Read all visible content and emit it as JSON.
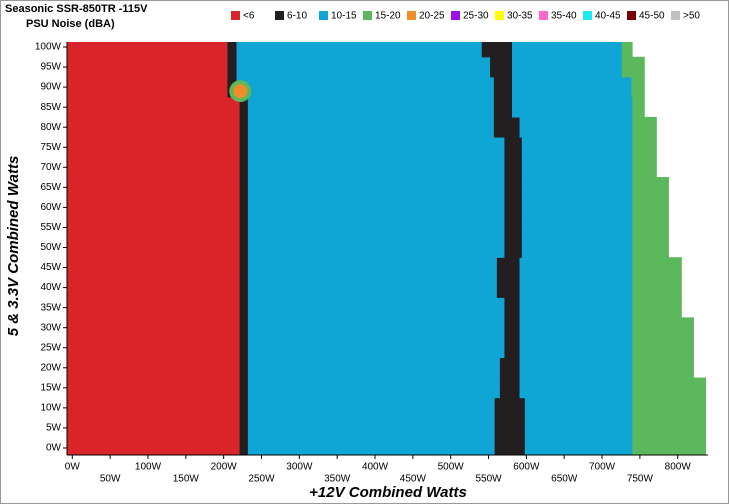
{
  "chart_data": {
    "type": "region-map",
    "title": "Seasonic SSR-850TR -115V",
    "subtitle": "PSU Noise (dBA)",
    "x_label": "+12V Combined Watts",
    "y_label": "5 & 3.3V Combined Watts",
    "legend": [
      {
        "name": "<6",
        "color": "#d9252a"
      },
      {
        "name": "6-10",
        "color": "#231f20"
      },
      {
        "name": "10-15",
        "color": "#0fa5d4"
      },
      {
        "name": "15-20",
        "color": "#5cb85c"
      },
      {
        "name": "20-25",
        "color": "#f08c2a"
      },
      {
        "name": "25-30",
        "color": "#9b10e6"
      },
      {
        "name": "30-35",
        "color": "#ffff00"
      },
      {
        "name": "35-40",
        "color": "#ff69c8"
      },
      {
        "name": "40-45",
        "color": "#1ee8f0"
      },
      {
        "name": "45-50",
        "color": "#7a0000"
      },
      {
        "name": ">50",
        "color": "#c0c0c0"
      }
    ],
    "layers": [
      0,
      1,
      2,
      1,
      2,
      3
    ],
    "rows": [
      {
        "y": 0,
        "ends": [
          221,
          232,
          558,
          598,
          740,
          837
        ]
      },
      {
        "y": 5,
        "ends": [
          221,
          232,
          558,
          598,
          740,
          837
        ]
      },
      {
        "y": 10,
        "ends": [
          221,
          232,
          558,
          598,
          740,
          837
        ]
      },
      {
        "y": 15,
        "ends": [
          221,
          232,
          565,
          591,
          740,
          837
        ]
      },
      {
        "y": 20,
        "ends": [
          221,
          232,
          565,
          591,
          740,
          821
        ]
      },
      {
        "y": 25,
        "ends": [
          221,
          232,
          571,
          591,
          740,
          821
        ]
      },
      {
        "y": 30,
        "ends": [
          221,
          232,
          571,
          591,
          740,
          821
        ]
      },
      {
        "y": 35,
        "ends": [
          221,
          232,
          571,
          591,
          740,
          805
        ]
      },
      {
        "y": 40,
        "ends": [
          221,
          232,
          561,
          591,
          740,
          805
        ]
      },
      {
        "y": 45,
        "ends": [
          221,
          232,
          561,
          591,
          740,
          805
        ]
      },
      {
        "y": 50,
        "ends": [
          221,
          232,
          571,
          594,
          740,
          788
        ]
      },
      {
        "y": 55,
        "ends": [
          221,
          232,
          571,
          594,
          740,
          788
        ]
      },
      {
        "y": 60,
        "ends": [
          221,
          232,
          571,
          594,
          740,
          788
        ]
      },
      {
        "y": 65,
        "ends": [
          221,
          232,
          571,
          594,
          740,
          788
        ]
      },
      {
        "y": 70,
        "ends": [
          221,
          232,
          571,
          594,
          740,
          772
        ]
      },
      {
        "y": 75,
        "ends": [
          221,
          232,
          571,
          594,
          740,
          772
        ]
      },
      {
        "y": 80,
        "ends": [
          221,
          232,
          557,
          591,
          740,
          772
        ]
      },
      {
        "y": 85,
        "ends": [
          221,
          232,
          557,
          581,
          740,
          756
        ]
      },
      {
        "y": 90,
        "ends": [
          205,
          217,
          557,
          581,
          739,
          756
        ]
      },
      {
        "y": 95,
        "ends": [
          205,
          217,
          552,
          581,
          726,
          756
        ]
      },
      {
        "y": 100,
        "ends": [
          205,
          217,
          541,
          581,
          726,
          740
        ]
      }
    ],
    "spot": {
      "x": 222,
      "y": 89,
      "band": 4,
      "ring_band": 3
    },
    "xlim": [
      -7,
      840
    ],
    "ylim": [
      -1.75,
      101.25
    ],
    "xticks": [
      {
        "value": 0,
        "label": "0W"
      },
      {
        "value": 50,
        "label": "50W"
      },
      {
        "value": 100,
        "label": "100W"
      },
      {
        "value": 150,
        "label": "150W"
      },
      {
        "value": 200,
        "label": "200W"
      },
      {
        "value": 250,
        "label": "250W"
      },
      {
        "value": 300,
        "label": "300W"
      },
      {
        "value": 350,
        "label": "350W"
      },
      {
        "value": 400,
        "label": "400W"
      },
      {
        "value": 450,
        "label": "450W"
      },
      {
        "value": 500,
        "label": "500W"
      },
      {
        "value": 550,
        "label": "550W"
      },
      {
        "value": 600,
        "label": "600W"
      },
      {
        "value": 650,
        "label": "650W"
      },
      {
        "value": 700,
        "label": "700W"
      },
      {
        "value": 750,
        "label": "750W"
      },
      {
        "value": 800,
        "label": "800W"
      }
    ],
    "yticks": [
      {
        "value": 0,
        "label": "0W"
      },
      {
        "value": 5,
        "label": "5W"
      },
      {
        "value": 10,
        "label": "10W"
      },
      {
        "value": 15,
        "label": "15W"
      },
      {
        "value": 20,
        "label": "20W"
      },
      {
        "value": 25,
        "label": "25W"
      },
      {
        "value": 30,
        "label": "30W"
      },
      {
        "value": 35,
        "label": "35W"
      },
      {
        "value": 40,
        "label": "40W"
      },
      {
        "value": 45,
        "label": "45W"
      },
      {
        "value": 50,
        "label": "50W"
      },
      {
        "value": 55,
        "label": "55W"
      },
      {
        "value": 60,
        "label": "60W"
      },
      {
        "value": 65,
        "label": "65W"
      },
      {
        "value": 70,
        "label": "70W"
      },
      {
        "value": 75,
        "label": "75W"
      },
      {
        "value": 80,
        "label": "80W"
      },
      {
        "value": 85,
        "label": "85W"
      },
      {
        "value": 90,
        "label": "90W"
      },
      {
        "value": 95,
        "label": "95W"
      },
      {
        "value": 100,
        "label": "100W"
      }
    ]
  }
}
